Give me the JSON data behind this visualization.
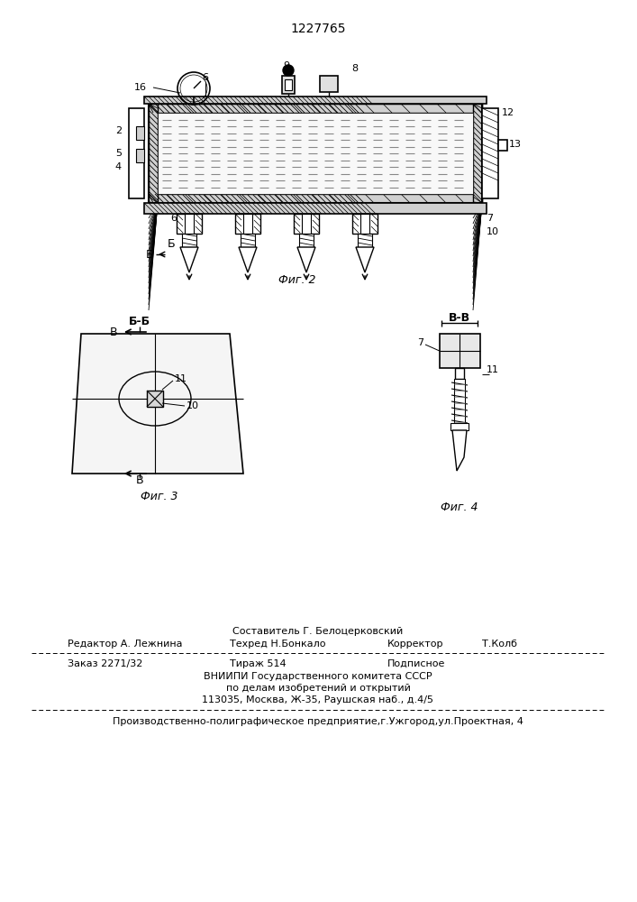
{
  "patent_number": "1227765",
  "fig2_caption": "Фиг. 2",
  "fig3_caption": "Фиг. 3",
  "fig4_caption": "Фиг. 4",
  "footer_line1": "Составитель Г. Белоцерковский",
  "footer_line2_col1": "Редактор А. Лежнина",
  "footer_line2_col2": "Техред Н.Бонкало",
  "footer_line2_col3": "Корректор",
  "footer_line2_col4": "Т.Колб",
  "footer_line3_col1": "Заказ 2271/32",
  "footer_line3_col2": "Тираж 514",
  "footer_line3_col3": "Подписное",
  "footer_line4": "ВНИИПИ Государственного комитета СССР",
  "footer_line5": "по делам изобретений и открытий",
  "footer_line6": "113035, Москва, Ж-35, Раушская наб., д.4/5",
  "footer_line7": "Производственно-полиграфическое предприятие,г.Ужгород,ул.Проектная, 4",
  "bg_color": "#ffffff"
}
